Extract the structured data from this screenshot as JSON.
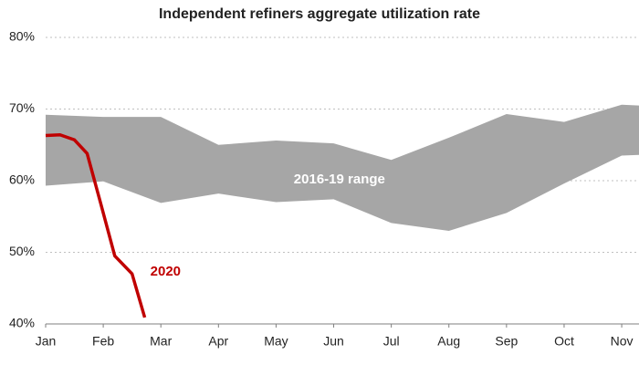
{
  "chart_data": {
    "type": "line",
    "title": "Independent refiners aggregate utilization rate",
    "xlim": [
      0,
      10.3
    ],
    "xticks": [
      {
        "value": 0,
        "label": "Jan"
      },
      {
        "value": 1,
        "label": "Feb"
      },
      {
        "value": 2,
        "label": "Mar"
      },
      {
        "value": 3,
        "label": "Apr"
      },
      {
        "value": 4,
        "label": "May"
      },
      {
        "value": 5,
        "label": "Jun"
      },
      {
        "value": 6,
        "label": "Jul"
      },
      {
        "value": 7,
        "label": "Aug"
      },
      {
        "value": 8,
        "label": "Sep"
      },
      {
        "value": 9,
        "label": "Oct"
      },
      {
        "value": 10,
        "label": "Nov"
      }
    ],
    "ylim": [
      40,
      80
    ],
    "yticks": [
      {
        "value": 40,
        "label": "40%"
      },
      {
        "value": 50,
        "label": "50%"
      },
      {
        "value": 60,
        "label": "60%"
      },
      {
        "value": 70,
        "label": "70%"
      },
      {
        "value": 80,
        "label": "80%"
      }
    ],
    "grid": true,
    "series": [
      {
        "name": "2016-19 range",
        "kind": "band",
        "color": "#a6a6a6",
        "x": [
          0,
          1,
          2,
          3,
          4,
          5,
          6,
          7,
          8,
          9,
          10,
          10.3
        ],
        "high": [
          69.2,
          68.9,
          68.9,
          65.0,
          65.6,
          65.2,
          62.9,
          66.0,
          69.3,
          68.2,
          70.6,
          70.5
        ],
        "low": [
          59.3,
          59.9,
          56.9,
          58.2,
          57.0,
          57.4,
          54.1,
          53.0,
          55.5,
          59.6,
          63.5,
          63.6
        ]
      },
      {
        "name": "2020",
        "kind": "line",
        "color": "#c00000",
        "x": [
          0,
          0.25,
          0.5,
          0.72,
          0.95,
          1.2,
          1.5,
          1.72
        ],
        "values": [
          66.3,
          66.4,
          65.7,
          63.8,
          57.0,
          49.5,
          47.0,
          40.9
        ]
      }
    ]
  }
}
